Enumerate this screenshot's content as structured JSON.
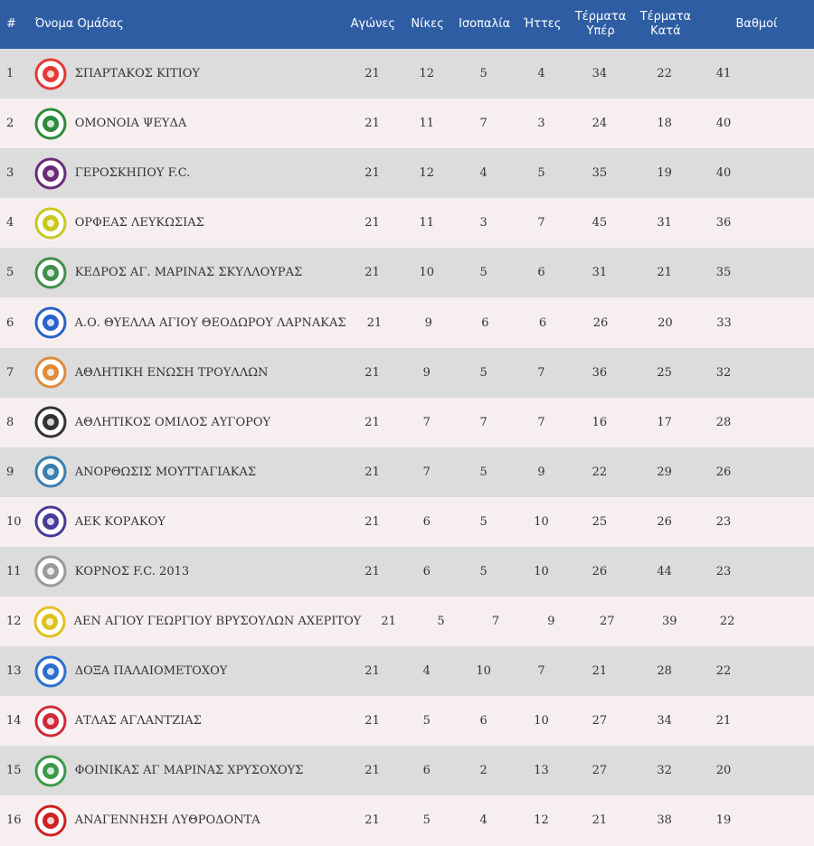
{
  "header": {
    "rank": "#",
    "team": "Όνομα Ομάδας",
    "games": "Αγώνες",
    "wins": "Νίκες",
    "draws": "Ισοπαλία",
    "losses": "Ήττες",
    "gf_line1": "Τέρματα",
    "gf_line2": "Υπέρ",
    "ga_line1": "Τέρματα",
    "ga_line2": "Κατά",
    "points": "Βαθμοί"
  },
  "rows": [
    {
      "rank": "1",
      "team": "ΣΠΑΡΤΑΚΟΣ ΚΙΤΙΟΥ",
      "games": "21",
      "wins": "12",
      "draws": "5",
      "losses": "4",
      "gf": "34",
      "ga": "22",
      "pts": "41",
      "logo_color": "#e53935",
      "logo_name": "spartakos-logo"
    },
    {
      "rank": "2",
      "team": "ΟΜΟΝΟΙΑ ΨΕΥΔΑ",
      "games": "21",
      "wins": "11",
      "draws": "7",
      "losses": "3",
      "gf": "24",
      "ga": "18",
      "pts": "40",
      "logo_color": "#2e8b3d",
      "logo_name": "omonoia-logo"
    },
    {
      "rank": "3",
      "team": "ΓΕΡΟΣΚΗΠΟΥ F.C.",
      "games": "21",
      "wins": "12",
      "draws": "4",
      "losses": "5",
      "gf": "35",
      "ga": "19",
      "pts": "40",
      "logo_color": "#6a2a7a",
      "logo_name": "geroskipou-logo"
    },
    {
      "rank": "4",
      "team": "ΟΡΦΕΑΣ ΛΕΥΚΩΣΙΑΣ",
      "games": "21",
      "wins": "11",
      "draws": "3",
      "losses": "7",
      "gf": "45",
      "ga": "31",
      "pts": "36",
      "logo_color": "#c8c81e",
      "logo_name": "orfeas-logo"
    },
    {
      "rank": "5",
      "team": "ΚΕΔΡΟΣ ΑΓ. ΜΑΡΙΝΑΣ ΣΚΥΛΛΟΥΡΑΣ",
      "games": "21",
      "wins": "10",
      "draws": "5",
      "losses": "6",
      "gf": "31",
      "ga": "21",
      "pts": "35",
      "logo_color": "#3f8f4a",
      "logo_name": "kedros-logo"
    },
    {
      "rank": "6",
      "team": "Α.Ο. ΘΥΕΛΛΑ ΑΓΙΟΥ ΘΕΟΔΩΡΟΥ ΛΑΡΝΑΚΑΣ",
      "games": "21",
      "wins": "9",
      "draws": "6",
      "losses": "6",
      "gf": "26",
      "ga": "20",
      "pts": "33",
      "logo_color": "#2a62c8",
      "logo_name": "thyella-logo"
    },
    {
      "rank": "7",
      "team": "ΑΘΛΗΤΙΚΗ ΕΝΩΣΗ ΤΡΟΥΛΛΩΝ",
      "games": "21",
      "wins": "9",
      "draws": "5",
      "losses": "7",
      "gf": "36",
      "ga": "25",
      "pts": "32",
      "logo_color": "#e08a3a",
      "logo_name": "troullon-logo"
    },
    {
      "rank": "8",
      "team": "ΑΘΛΗΤΙΚΟΣ ΟΜΙΛΟΣ ΑΥΓΟΡΟΥ",
      "games": "21",
      "wins": "7",
      "draws": "7",
      "losses": "7",
      "gf": "16",
      "ga": "17",
      "pts": "28",
      "logo_color": "#333333",
      "logo_name": "avgorou-logo"
    },
    {
      "rank": "9",
      "team": "ΑΝΟΡΘΩΣΙΣ ΜΟΥΤΤΑΓΙΑΚΑΣ",
      "games": "21",
      "wins": "7",
      "draws": "5",
      "losses": "9",
      "gf": "22",
      "ga": "29",
      "pts": "26",
      "logo_color": "#3a7fb0",
      "logo_name": "anorthosis-logo"
    },
    {
      "rank": "10",
      "team": "ΑΕΚ ΚΟΡΑΚΟΥ",
      "games": "21",
      "wins": "6",
      "draws": "5",
      "losses": "10",
      "gf": "25",
      "ga": "26",
      "pts": "23",
      "logo_color": "#4a3a9a",
      "logo_name": "aek-korakou-logo"
    },
    {
      "rank": "11",
      "team": "ΚΟΡΝΟΣ F.C. 2013",
      "games": "21",
      "wins": "6",
      "draws": "5",
      "losses": "10",
      "gf": "26",
      "ga": "44",
      "pts": "23",
      "logo_color": "#9a9a9a",
      "logo_name": "kornos-logo"
    },
    {
      "rank": "12",
      "team": "ΑΕΝ ΑΓΙΟΥ ΓΕΩΡΓΙΟΥ ΒΡΥΣΟΥΛΩΝ ΑΧΕΡΙΤΟΥ",
      "games": "21",
      "wins": "5",
      "draws": "7",
      "losses": "9",
      "gf": "27",
      "ga": "39",
      "pts": "22",
      "logo_color": "#e0c020",
      "logo_name": "aen-logo"
    },
    {
      "rank": "13",
      "team": "ΔΟΞΑ ΠΑΛΑΙΟΜΕΤΟΧΟΥ",
      "games": "21",
      "wins": "4",
      "draws": "10",
      "losses": "7",
      "gf": "21",
      "ga": "28",
      "pts": "22",
      "logo_color": "#2a6fd0",
      "logo_name": "doxa-logo"
    },
    {
      "rank": "14",
      "team": "ΑΤΛΑΣ ΑΓΛΑΝΤΖΙΑΣ",
      "games": "21",
      "wins": "5",
      "draws": "6",
      "losses": "10",
      "gf": "27",
      "ga": "34",
      "pts": "21",
      "logo_color": "#d02a3a",
      "logo_name": "atlas-logo"
    },
    {
      "rank": "15",
      "team": "ΦΟΙΝΙΚΑΣ ΑΓ ΜΑΡΙΝΑΣ ΧΡΥΣΟΧΟΥΣ",
      "games": "21",
      "wins": "6",
      "draws": "2",
      "losses": "13",
      "gf": "27",
      "ga": "32",
      "pts": "20",
      "logo_color": "#3a9a4a",
      "logo_name": "foinikas-logo"
    },
    {
      "rank": "16",
      "team": "ΑΝΑΓΕΝΝΗΣΗ ΛΥΘΡΟΔΟΝΤΑ",
      "games": "21",
      "wins": "5",
      "draws": "4",
      "losses": "12",
      "gf": "21",
      "ga": "38",
      "pts": "19",
      "logo_color": "#d02020",
      "logo_name": "anagennisi-logo"
    }
  ]
}
